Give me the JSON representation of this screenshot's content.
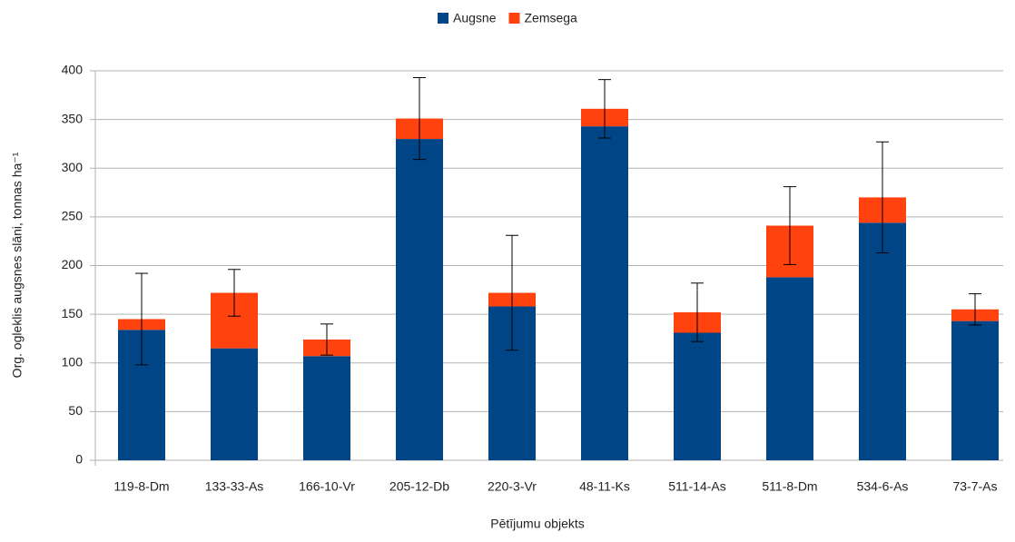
{
  "chart_data": {
    "type": "stacked_bar",
    "categories": [
      "119-8-Dm",
      "133-33-As",
      "166-10-Vr",
      "205-12-Db",
      "220-3-Vr",
      "48-11-Ks",
      "511-14-As",
      "511-8-Dm",
      "534-6-As",
      "73-7-As"
    ],
    "series": [
      {
        "name": "Augsne",
        "color": "#004586",
        "values": [
          134,
          115,
          107,
          330,
          158,
          343,
          131,
          188,
          244,
          143
        ]
      },
      {
        "name": "Zemsega",
        "color": "#ff420e",
        "values": [
          11,
          57,
          17,
          21,
          14,
          18,
          21,
          53,
          26,
          12
        ]
      }
    ],
    "errors": [
      47,
      24,
      16,
      42,
      59,
      30,
      30,
      40,
      57,
      16
    ],
    "ylim": [
      0,
      400
    ],
    "yticks": [
      0,
      50,
      100,
      150,
      200,
      250,
      300,
      350,
      400
    ],
    "y_label": "Org. ogleklis augsnes slāni, tonnas ha⁻¹",
    "x_label": "Pētījumu objekts",
    "grid": true,
    "legend": "top"
  }
}
